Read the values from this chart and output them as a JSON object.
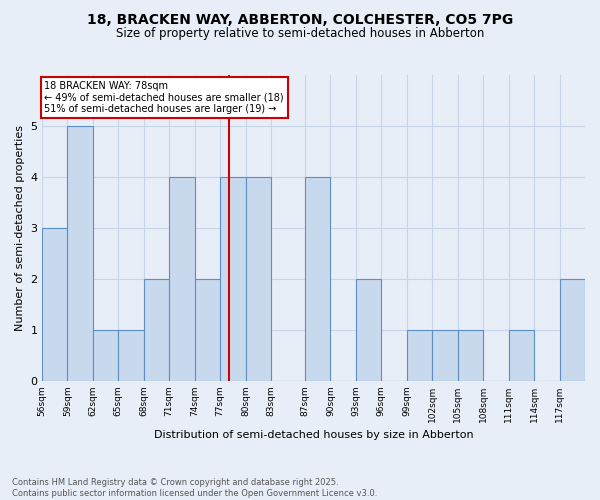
{
  "title": "18, BRACKEN WAY, ABBERTON, COLCHESTER, CO5 7PG",
  "subtitle": "Size of property relative to semi-detached houses in Abberton",
  "xlabel": "Distribution of semi-detached houses by size in Abberton",
  "ylabel": "Number of semi-detached properties",
  "bin_labels": [
    "56sqm",
    "59sqm",
    "62sqm",
    "65sqm",
    "68sqm",
    "71sqm",
    "74sqm",
    "77sqm",
    "80sqm",
    "83sqm",
    "87sqm",
    "90sqm",
    "93sqm",
    "96sqm",
    "99sqm",
    "102sqm",
    "105sqm",
    "108sqm",
    "111sqm",
    "114sqm",
    "117sqm"
  ],
  "bin_edges": [
    56,
    59,
    62,
    65,
    68,
    71,
    74,
    77,
    80,
    83,
    87,
    90,
    93,
    96,
    99,
    102,
    105,
    108,
    111,
    114,
    117,
    120
  ],
  "counts": [
    3,
    5,
    1,
    1,
    2,
    4,
    2,
    4,
    4,
    0,
    4,
    0,
    2,
    0,
    1,
    1,
    1,
    0,
    1,
    0,
    2
  ],
  "bar_color": "#c8d9ed",
  "bar_edge_color": "#5b8fc9",
  "grid_color": "#c8d4e8",
  "subject_value": 78,
  "subject_label": "18 BRACKEN WAY: 78sqm",
  "annotation_line1": "← 49% of semi-detached houses are smaller (18)",
  "annotation_line2": "51% of semi-detached houses are larger (19) →",
  "box_edge_color": "#cc0000",
  "subject_line_color": "#cc0000",
  "footer_line1": "Contains HM Land Registry data © Crown copyright and database right 2025.",
  "footer_line2": "Contains public sector information licensed under the Open Government Licence v3.0.",
  "background_color": "#e8eef8",
  "ylim": [
    0,
    6
  ],
  "title_fontsize": 10,
  "subtitle_fontsize": 8.5
}
